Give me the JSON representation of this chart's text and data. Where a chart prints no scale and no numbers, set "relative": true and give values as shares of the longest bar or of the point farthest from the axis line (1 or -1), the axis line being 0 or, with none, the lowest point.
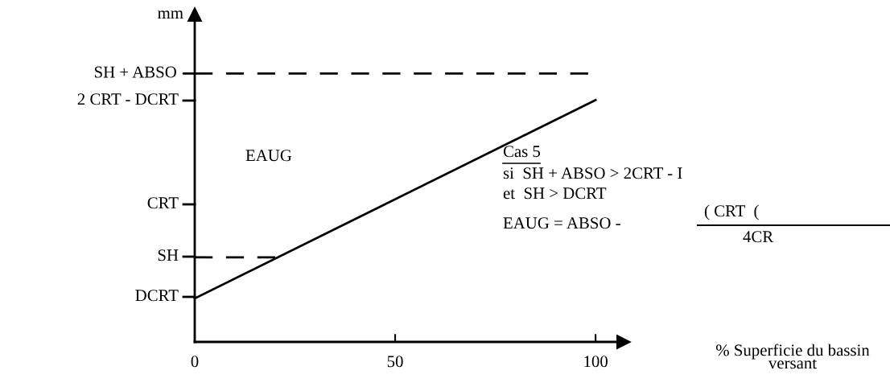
{
  "chart_data": {
    "type": "line",
    "relative": true,
    "ylabel": "mm",
    "x": [
      0,
      100
    ],
    "series": [
      {
        "color": "#000000",
        "values": [
          0.18,
          1
        ],
        "line_style": "solid"
      },
      {
        "color": "#000000",
        "x": [
          0,
          21
        ],
        "values": [
          0.35,
          0.35
        ],
        "line_style": "dashed"
      }
    ],
    "xlim": [
      0,
      107
    ],
    "xticks": [
      0,
      50,
      100
    ],
    "ref_lines": [
      {
        "axis": "y",
        "value": 1.11,
        "color": "#000000",
        "line_style": "dashed",
        "label": "SH + ABSO"
      }
    ],
    "grid": false,
    "legend": false,
    "marker": "none",
    "annotations": [
      "DCRT",
      "SH",
      "CRT",
      "2 CRT - DCRT",
      "EAUG",
      "Cas 5",
      "si  SH + ABSO > 2CRT - I",
      "et  SH > DCRT",
      "EAUG = ABSO -",
      "( CRT  (",
      "4CR",
      "% Superficie du bassin\nversant"
    ]
  }
}
